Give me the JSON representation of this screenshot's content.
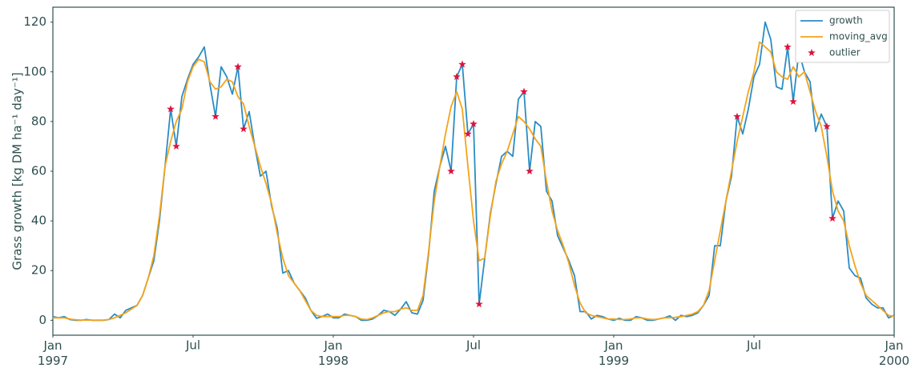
{
  "chart_data": {
    "type": "line",
    "ylabel": "Grass growth [kg DM ha⁻¹ day⁻¹]",
    "x": [
      1997,
      1997.02,
      1997.04,
      1997.06,
      1997.08,
      1997.1,
      1997.12,
      1997.14,
      1997.16,
      1997.18,
      1997.2,
      1997.22,
      1997.24,
      1997.26,
      1997.28,
      1997.3,
      1997.32,
      1997.34,
      1997.36,
      1997.38,
      1997.4,
      1997.42,
      1997.44,
      1997.46,
      1997.48,
      1997.5,
      1997.52,
      1997.54,
      1997.56,
      1997.58,
      1997.6,
      1997.62,
      1997.64,
      1997.66,
      1997.68,
      1997.7,
      1997.72,
      1997.74,
      1997.76,
      1997.78,
      1997.8,
      1997.82,
      1997.84,
      1997.86,
      1997.88,
      1997.9,
      1997.92,
      1997.94,
      1997.96,
      1997.98,
      1998,
      1998.02,
      1998.04,
      1998.06,
      1998.08,
      1998.1,
      1998.12,
      1998.14,
      1998.16,
      1998.18,
      1998.2,
      1998.22,
      1998.24,
      1998.26,
      1998.28,
      1998.3,
      1998.32,
      1998.34,
      1998.36,
      1998.38,
      1998.4,
      1998.42,
      1998.44,
      1998.46,
      1998.48,
      1998.5,
      1998.52,
      1998.54,
      1998.56,
      1998.58,
      1998.6,
      1998.62,
      1998.64,
      1998.66,
      1998.68,
      1998.7,
      1998.72,
      1998.74,
      1998.76,
      1998.78,
      1998.8,
      1998.82,
      1998.84,
      1998.86,
      1998.88,
      1998.9,
      1998.92,
      1998.94,
      1998.96,
      1998.98,
      1999,
      1999.02,
      1999.04,
      1999.06,
      1999.08,
      1999.1,
      1999.12,
      1999.14,
      1999.16,
      1999.18,
      1999.2,
      1999.22,
      1999.24,
      1999.26,
      1999.28,
      1999.3,
      1999.32,
      1999.34,
      1999.36,
      1999.38,
      1999.4,
      1999.42,
      1999.44,
      1999.46,
      1999.48,
      1999.5,
      1999.52,
      1999.54,
      1999.56,
      1999.58,
      1999.6,
      1999.62,
      1999.64,
      1999.66,
      1999.68,
      1999.7,
      1999.72,
      1999.74,
      1999.76,
      1999.78,
      1999.8,
      1999.82,
      1999.84,
      1999.86,
      1999.88,
      1999.9,
      1999.92,
      1999.94,
      1999.96,
      1999.98,
      2000
    ],
    "series": [
      {
        "name": "growth",
        "color": "#2b8cc4",
        "values": [
          1.5,
          1,
          1.5,
          0.3,
          0,
          0,
          0.3,
          0,
          0,
          0,
          0.3,
          2.5,
          1,
          4,
          5,
          6,
          10,
          17,
          24,
          40,
          62,
          85,
          70,
          90,
          97,
          103,
          106,
          110,
          95,
          82,
          102,
          98,
          91,
          102,
          77,
          84,
          70,
          58,
          60,
          46,
          37,
          19,
          20,
          15,
          12,
          9,
          4,
          0.8,
          1.5,
          2.5,
          1,
          1,
          2.5,
          2,
          1.5,
          0,
          0,
          0.5,
          2,
          4,
          3.5,
          2,
          4.5,
          7.5,
          3,
          2.5,
          8,
          27,
          52,
          62,
          70,
          60,
          98,
          103,
          75,
          79,
          6.5,
          25,
          43,
          55,
          66,
          68,
          66,
          89,
          92,
          60,
          80,
          78,
          52,
          48,
          34,
          29,
          24,
          18,
          3.5,
          3.5,
          0.5,
          2,
          1.5,
          0.5,
          0,
          0.8,
          0,
          0,
          1.5,
          1,
          0,
          0,
          0.5,
          1,
          1.8,
          0,
          2,
          1.5,
          2,
          3,
          6,
          10,
          30,
          30,
          48,
          58,
          82,
          75,
          85,
          98,
          103,
          120,
          113,
          94,
          93,
          110,
          88,
          108,
          100,
          96,
          76,
          83,
          78,
          41,
          48,
          44,
          21,
          18,
          17,
          9,
          6.5,
          5,
          5,
          1,
          2
        ]
      },
      {
        "name": "moving_avg",
        "color": "#f5a31a",
        "values": [
          1,
          1,
          1,
          0.5,
          0.2,
          0.1,
          0.1,
          0.1,
          0.1,
          0.1,
          0.3,
          1,
          2,
          3,
          4.5,
          6,
          10,
          17,
          26,
          42,
          62,
          72,
          80,
          85,
          96,
          102,
          105,
          104,
          96,
          93,
          94,
          97,
          96,
          90,
          87,
          78,
          70,
          62,
          55,
          47,
          35,
          25,
          18,
          15,
          12,
          8,
          4,
          2,
          1.5,
          1.5,
          1.5,
          1.5,
          2,
          2,
          1.5,
          0.5,
          0.3,
          1,
          2,
          3,
          3.5,
          3.5,
          4.5,
          5,
          4,
          4,
          10,
          28,
          48,
          62,
          75,
          86,
          92,
          85,
          62,
          40,
          24,
          25,
          42,
          56,
          63,
          68,
          75,
          82,
          80,
          77,
          73,
          70,
          56,
          44,
          36,
          30,
          23,
          14,
          7,
          3,
          2,
          1.5,
          1,
          0.5,
          0.5,
          0.3,
          0.3,
          0.5,
          1,
          1,
          0.5,
          0.3,
          0.5,
          1,
          1,
          1.2,
          1.5,
          2,
          2.5,
          3.5,
          6,
          12,
          24,
          36,
          48,
          60,
          72,
          82,
          92,
          100,
          112,
          110,
          108,
          100,
          98,
          97,
          102,
          98,
          100,
          92,
          84,
          78,
          66,
          52,
          44,
          40,
          30,
          22,
          15,
          10,
          8,
          6,
          4,
          2,
          1.5
        ]
      },
      {
        "name": "outlier",
        "color": "#dc143c",
        "type": "scatter",
        "x": [
          1997.42,
          1997.44,
          1997.58,
          1997.66,
          1997.68,
          1998.42,
          1998.44,
          1998.46,
          1998.48,
          1998.5,
          1998.52,
          1998.68,
          1998.7,
          1999.44,
          1999.62,
          1999.64,
          1999.76,
          1999.78
        ],
        "values": [
          85,
          70,
          82,
          102,
          77,
          60,
          98,
          103,
          75,
          79,
          6.5,
          92,
          60,
          82,
          110,
          88,
          78,
          41
        ]
      }
    ],
    "xlim": [
      1997,
      2000
    ],
    "xticks": [
      {
        "value": 1997,
        "label": "Jan\n1997"
      },
      {
        "value": 1997.5,
        "label": "Jul"
      },
      {
        "value": 1998,
        "label": "Jan\n1998"
      },
      {
        "value": 1998.5,
        "label": "Jul"
      },
      {
        "value": 1999,
        "label": "Jan\n1999"
      },
      {
        "value": 1999.5,
        "label": "Jul"
      },
      {
        "value": 2000,
        "label": "Jan\n2000"
      }
    ],
    "ylim": [
      -6,
      126
    ],
    "yticks": [
      0,
      20,
      40,
      60,
      80,
      100,
      120
    ],
    "grid": false,
    "legend": "upper right"
  }
}
